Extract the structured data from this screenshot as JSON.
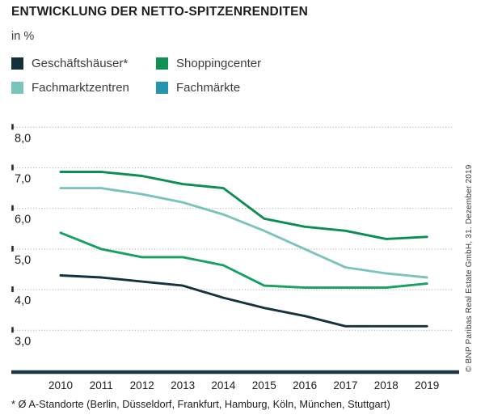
{
  "header": {
    "title": "ENTWICKLUNG DER NETTO-SPITZENRENDITEN",
    "unit_label": "in %"
  },
  "legend": {
    "items": [
      {
        "label": "Geschäftshäuser*",
        "color": "#13303B"
      },
      {
        "label": "Shoppingcenter",
        "color": "#0F9156"
      },
      {
        "label": "Fachmarktzentren",
        "color": "#7AC4BC"
      },
      {
        "label": "Fachmärkte",
        "color": "#2794AE"
      }
    ]
  },
  "chart_data": {
    "type": "line",
    "title": "ENTWICKLUNG DER NETTO-SPITZENRENDITEN",
    "xlabel": "",
    "ylabel": "in %",
    "x": [
      2010,
      2011,
      2012,
      2013,
      2014,
      2015,
      2016,
      2017,
      2018,
      2019
    ],
    "y_axis": {
      "ticks": [
        8.0,
        7.0,
        6.0,
        5.0,
        4.0,
        3.0
      ],
      "tick_labels": [
        "8,0",
        "7,0",
        "6,0",
        "5,0",
        "4,0",
        "3,0"
      ],
      "range": [
        3.0,
        8.0
      ]
    },
    "grid": "horizontal-dotted",
    "legend_position": "top-left",
    "series": [
      {
        "name": "Fachmärkte",
        "color": "#0E8C55",
        "values": [
          6.9,
          6.9,
          6.8,
          6.6,
          6.5,
          5.75,
          5.55,
          5.45,
          5.25,
          5.3
        ]
      },
      {
        "name": "Fachmarktzentren",
        "color": "#7AC4BC",
        "values": [
          6.5,
          6.5,
          6.35,
          6.15,
          5.85,
          5.45,
          5.0,
          4.55,
          4.4,
          4.3
        ]
      },
      {
        "name": "Shoppingcenter",
        "color": "#17A061",
        "values": [
          5.4,
          5.0,
          4.8,
          4.8,
          4.6,
          4.1,
          4.05,
          4.05,
          4.05,
          4.15
        ]
      },
      {
        "name": "Geschäftshäuser*",
        "color": "#15333E",
        "values": [
          4.35,
          4.3,
          4.2,
          4.1,
          3.8,
          3.55,
          3.35,
          3.1,
          3.1,
          3.1
        ]
      }
    ]
  },
  "credit": "© BNP Paribas Real Estate GmbH, 31. Dezember 2019",
  "footnote": "* Ø A-Standorte (Berlin, Düsseldorf, Frankfurt, Hamburg, Köln, München, Stuttgart)"
}
